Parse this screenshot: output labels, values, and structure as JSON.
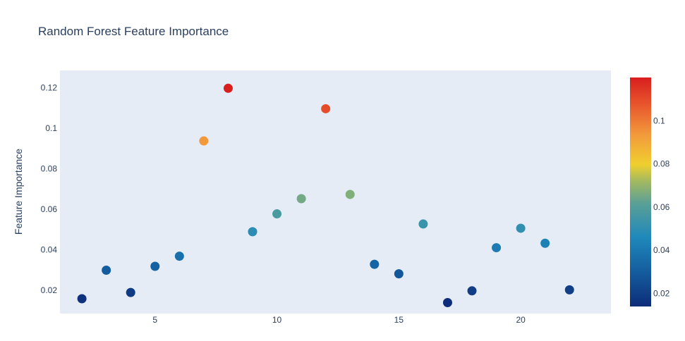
{
  "chart_data": {
    "type": "scatter",
    "title": "Random Forest Feature Importance",
    "xlabel": "",
    "ylabel": "Feature Importance",
    "xlim": [
      1.1,
      23.7
    ],
    "ylim": [
      0.0085,
      0.1285
    ],
    "xticks": [
      5,
      10,
      15,
      20
    ],
    "yticks": [
      0.02,
      0.04,
      0.06,
      0.08,
      0.1,
      0.12
    ],
    "ytick_labels": [
      "0.02",
      "0.04",
      "0.06",
      "0.08",
      "0.1",
      "0.12"
    ],
    "grid": false,
    "colorscale": [
      [
        0,
        "#0d2c79"
      ],
      [
        0.15,
        "#145c9e"
      ],
      [
        0.3,
        "#1f88bb"
      ],
      [
        0.45,
        "#5aa096"
      ],
      [
        0.55,
        "#a5ba5f"
      ],
      [
        0.62,
        "#f0cf2f"
      ],
      [
        0.75,
        "#f29a3c"
      ],
      [
        0.88,
        "#e8572d"
      ],
      [
        1,
        "#d81e1e"
      ]
    ],
    "colorbar": {
      "range": [
        0.0139,
        0.12
      ],
      "ticks": [
        0.02,
        0.04,
        0.06,
        0.08,
        0.1
      ],
      "tick_labels": [
        "0.02",
        "0.04",
        "0.06",
        "0.08",
        "0.1"
      ]
    },
    "points": [
      {
        "x": 2,
        "y": 0.0158
      },
      {
        "x": 3,
        "y": 0.0299
      },
      {
        "x": 4,
        "y": 0.0189
      },
      {
        "x": 5,
        "y": 0.0318
      },
      {
        "x": 6,
        "y": 0.0368
      },
      {
        "x": 7,
        "y": 0.0937
      },
      {
        "x": 8,
        "y": 0.1197
      },
      {
        "x": 9,
        "y": 0.0489
      },
      {
        "x": 10,
        "y": 0.0577
      },
      {
        "x": 11,
        "y": 0.0652
      },
      {
        "x": 12,
        "y": 0.1096
      },
      {
        "x": 13,
        "y": 0.0673
      },
      {
        "x": 14,
        "y": 0.0328
      },
      {
        "x": 15,
        "y": 0.0281
      },
      {
        "x": 16,
        "y": 0.0527
      },
      {
        "x": 17,
        "y": 0.0139
      },
      {
        "x": 18,
        "y": 0.0197
      },
      {
        "x": 19,
        "y": 0.041
      },
      {
        "x": 20,
        "y": 0.0506
      },
      {
        "x": 21,
        "y": 0.0432
      },
      {
        "x": 22,
        "y": 0.0202
      }
    ]
  }
}
